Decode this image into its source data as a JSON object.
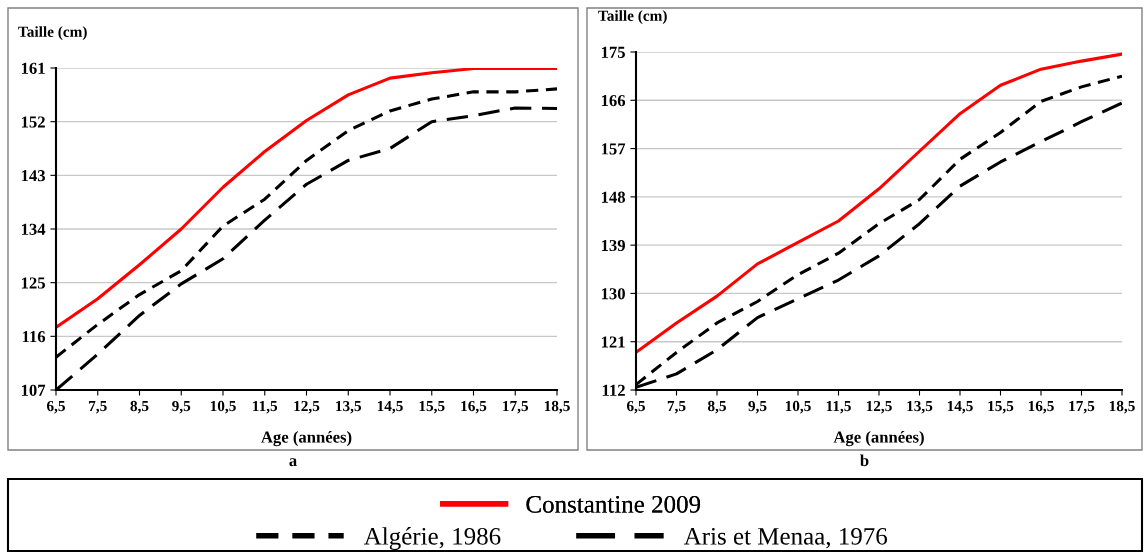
{
  "chart_data": [
    {
      "type": "line",
      "ylabel": "Taille (cm)",
      "xlabel": "Age (années)",
      "annotations": [
        "a"
      ],
      "legend": "bottom",
      "grid": "y",
      "marker": "none",
      "x": [
        6.5,
        7.5,
        8.5,
        9.5,
        10.5,
        11.5,
        12.5,
        13.5,
        14.5,
        15.5,
        16.5,
        17.5,
        18.5
      ],
      "xlim": [
        6.5,
        18.5
      ],
      "ylim": [
        107,
        161
      ],
      "yticks": [
        107,
        116,
        125,
        134,
        143,
        152,
        161
      ],
      "xticks": [
        {
          "value": 6.5,
          "label": "6,5"
        },
        {
          "value": 7.5,
          "label": "7,5"
        },
        {
          "value": 8.5,
          "label": "8,5"
        },
        {
          "value": 9.5,
          "label": "9,5"
        },
        {
          "value": 10.5,
          "label": "10,5"
        },
        {
          "value": 11.5,
          "label": "11,5"
        },
        {
          "value": 12.5,
          "label": "12,5"
        },
        {
          "value": 13.5,
          "label": "13,5"
        },
        {
          "value": 14.5,
          "label": "14,5"
        },
        {
          "value": 15.5,
          "label": "15,5"
        },
        {
          "value": 16.5,
          "label": "16,5"
        },
        {
          "value": 17.5,
          "label": "17,5"
        },
        {
          "value": 18.5,
          "label": "18,5"
        }
      ],
      "series": [
        {
          "name": "Constantine 2009",
          "color": "#ff0000",
          "line_style": "solid",
          "values": [
            117.5,
            122.3,
            128,
            134,
            141,
            147,
            152.2,
            156.5,
            159.3,
            160.2,
            160.9,
            160.9,
            160.9
          ]
        },
        {
          "name": "Algérie, 1986",
          "color": "#000000",
          "line_style": "dashed",
          "values": [
            112.5,
            118,
            123,
            127,
            134.5,
            139,
            145.5,
            150.5,
            153.8,
            155.8,
            157,
            157,
            157.5
          ]
        },
        {
          "name": "Aris et Menaa, 1976",
          "color": "#000000",
          "line_style": "dashed",
          "values": [
            107,
            113,
            119.5,
            124.8,
            129,
            135.5,
            141.5,
            145.5,
            147.5,
            152,
            153,
            154.3,
            154.2
          ]
        }
      ]
    },
    {
      "type": "line",
      "ylabel": "Taille (cm)",
      "xlabel": "Age (années)",
      "annotations": [
        "b"
      ],
      "legend": "bottom",
      "grid": "y",
      "marker": "none",
      "x": [
        6.5,
        7.5,
        8.5,
        9.5,
        10.5,
        11.5,
        12.5,
        13.5,
        14.5,
        15.5,
        16.5,
        17.5,
        18.5
      ],
      "xlim": [
        6.5,
        18.5
      ],
      "ylim": [
        112,
        175
      ],
      "yticks": [
        112,
        121,
        130,
        139,
        148,
        157,
        166,
        175
      ],
      "xticks": [
        {
          "value": 6.5,
          "label": "6,5"
        },
        {
          "value": 7.5,
          "label": "7,5"
        },
        {
          "value": 8.5,
          "label": "8,5"
        },
        {
          "value": 9.5,
          "label": "9,5"
        },
        {
          "value": 10.5,
          "label": "10,5"
        },
        {
          "value": 11.5,
          "label": "11,5"
        },
        {
          "value": 12.5,
          "label": "12,5"
        },
        {
          "value": 13.5,
          "label": "13,5"
        },
        {
          "value": 14.5,
          "label": "14,5"
        },
        {
          "value": 15.5,
          "label": "15,5"
        },
        {
          "value": 16.5,
          "label": "16,5"
        },
        {
          "value": 17.5,
          "label": "17,5"
        },
        {
          "value": 18.5,
          "label": "18,5"
        }
      ],
      "series": [
        {
          "name": "Constantine 2009",
          "color": "#ff0000",
          "line_style": "solid",
          "values": [
            119,
            124.5,
            129.5,
            135.5,
            139.5,
            143.5,
            149.5,
            156.5,
            163.5,
            168.8,
            171.8,
            173.3,
            174.6
          ]
        },
        {
          "name": "Algérie, 1986",
          "color": "#000000",
          "line_style": "dashed",
          "values": [
            113,
            119,
            124.5,
            128.5,
            133.5,
            137.5,
            143,
            147.5,
            155,
            160,
            165.8,
            168.5,
            170.5
          ]
        },
        {
          "name": "Aris et Menaa, 1976",
          "color": "#000000",
          "line_style": "dashed",
          "values": [
            112.5,
            115,
            119.5,
            125.5,
            129,
            132.5,
            137,
            143,
            150,
            154.5,
            158.3,
            162,
            165.5
          ]
        }
      ]
    }
  ]
}
